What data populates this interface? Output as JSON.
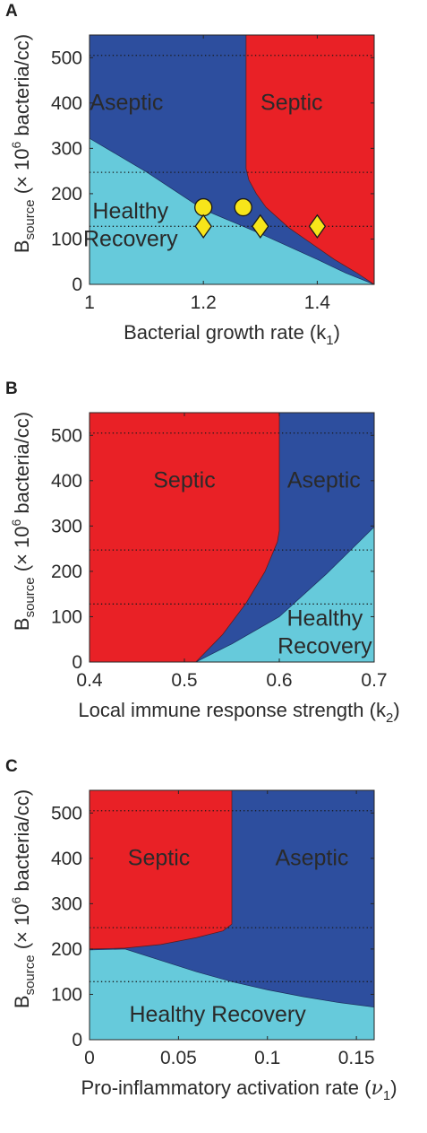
{
  "chart_data": [
    {
      "panel": "A",
      "type": "area",
      "xlabel": "Bacterial growth rate (k",
      "xlabel_sub": "1",
      "xlabel_tail": ")",
      "ylabel_main": "B",
      "ylabel_sub": "source",
      "ylabel_rest": " (× 10",
      "ylabel_sup": "6",
      "ylabel_tail": " bacteria/cc)",
      "xlim": [
        1,
        1.5
      ],
      "ylim": [
        0,
        550
      ],
      "xticks": [
        1,
        1.2,
        1.4
      ],
      "xtick_labels": [
        "1",
        "1.2",
        "1.4"
      ],
      "yticks": [
        0,
        100,
        200,
        300,
        400,
        500
      ],
      "ytick_labels": [
        "0",
        "100",
        "200",
        "300",
        "400",
        "500"
      ],
      "dotted_lines_y": [
        505,
        247,
        128
      ],
      "colors": {
        "healthy": "#66cadb",
        "aseptic": "#2d4e9e",
        "septic": "#e92126"
      },
      "regions": [
        {
          "name": "Aseptic",
          "label_lines": [
            "Aseptic"
          ],
          "color": "#2d4e9e",
          "label_at": [
            1.065,
            385
          ]
        },
        {
          "name": "Septic",
          "label_lines": [
            "Septic"
          ],
          "color": "#e92126",
          "label_at": [
            1.355,
            385
          ]
        },
        {
          "name": "Healthy Recovery",
          "label_lines": [
            "Healthy",
            "Recovery"
          ],
          "color": "#66cadb",
          "label_at": [
            1.072,
            145
          ]
        }
      ],
      "boundaries": {
        "healthy_aseptic": [
          [
            1.0,
            322
          ],
          [
            1.1,
            248
          ],
          [
            1.2,
            165
          ],
          [
            1.3,
            112
          ],
          [
            1.4,
            55
          ],
          [
            1.45,
            25
          ],
          [
            1.5,
            0
          ]
        ],
        "aseptic_septic": [
          [
            1.5,
            0
          ],
          [
            1.47,
            25
          ],
          [
            1.43,
            55
          ],
          [
            1.39,
            90
          ],
          [
            1.35,
            125
          ],
          [
            1.31,
            170
          ],
          [
            1.293,
            200
          ],
          [
            1.28,
            230
          ],
          [
            1.275,
            255
          ],
          [
            1.275,
            550
          ]
        ]
      },
      "markers": [
        {
          "shape": "circle",
          "x": 1.2,
          "y": 170
        },
        {
          "shape": "circle",
          "x": 1.27,
          "y": 170
        },
        {
          "shape": "diamond",
          "x": 1.2,
          "y": 128
        },
        {
          "shape": "diamond",
          "x": 1.3,
          "y": 128
        },
        {
          "shape": "diamond",
          "x": 1.4,
          "y": 128
        }
      ],
      "marker_color": "#f7e51a"
    },
    {
      "panel": "B",
      "type": "area",
      "xlabel": "Local immune response strength (k",
      "xlabel_sub": "2",
      "xlabel_tail": ")",
      "ylabel_main": "B",
      "ylabel_sub": "source",
      "ylabel_rest": " (× 10",
      "ylabel_sup": "6",
      "ylabel_tail": " bacteria/cc)",
      "xlim": [
        0.4,
        0.7
      ],
      "ylim": [
        0,
        550
      ],
      "xticks": [
        0.4,
        0.5,
        0.6,
        0.7
      ],
      "xtick_labels": [
        "0.4",
        "0.5",
        "0.6",
        "0.7"
      ],
      "yticks": [
        0,
        100,
        200,
        300,
        400,
        500
      ],
      "ytick_labels": [
        "0",
        "100",
        "200",
        "300",
        "400",
        "500"
      ],
      "dotted_lines_y": [
        505,
        247,
        128
      ],
      "colors": {
        "healthy": "#66cadb",
        "aseptic": "#2d4e9e",
        "septic": "#e92126"
      },
      "regions": [
        {
          "name": "Septic",
          "label_lines": [
            "Septic"
          ],
          "color": "#e92126",
          "label_at": [
            0.5,
            385
          ]
        },
        {
          "name": "Aseptic",
          "label_lines": [
            "Aseptic"
          ],
          "color": "#2d4e9e",
          "label_at": [
            0.647,
            385
          ]
        },
        {
          "name": "Healthy Recovery",
          "label_lines": [
            "Healthy",
            "Recovery"
          ],
          "color": "#66cadb",
          "label_at": [
            0.648,
            80
          ]
        }
      ],
      "boundaries": {
        "septic_aseptic": [
          [
            0.512,
            0
          ],
          [
            0.54,
            60
          ],
          [
            0.565,
            130
          ],
          [
            0.585,
            200
          ],
          [
            0.598,
            265
          ],
          [
            0.6,
            290
          ],
          [
            0.6,
            550
          ]
        ],
        "aseptic_healthy": [
          [
            0.512,
            0
          ],
          [
            0.55,
            40
          ],
          [
            0.6,
            100
          ],
          [
            0.65,
            195
          ],
          [
            0.7,
            298
          ]
        ]
      },
      "markers": []
    },
    {
      "panel": "C",
      "type": "area",
      "xlabel": "Pro-inflammatory activation rate (",
      "xlabel_sym": "ν",
      "xlabel_sub": "1",
      "xlabel_tail": ")",
      "ylabel_main": "B",
      "ylabel_sub": "source",
      "ylabel_rest": " (× 10",
      "ylabel_sup": "6",
      "ylabel_tail": " bacteria/cc)",
      "xlim": [
        0,
        0.16
      ],
      "ylim": [
        0,
        550
      ],
      "xticks": [
        0,
        0.05,
        0.1,
        0.15
      ],
      "xtick_labels": [
        "0",
        "0.05",
        "0.1",
        "0.15"
      ],
      "yticks": [
        0,
        100,
        200,
        300,
        400,
        500
      ],
      "ytick_labels": [
        "0",
        "100",
        "200",
        "300",
        "400",
        "500"
      ],
      "dotted_lines_y": [
        505,
        247,
        128
      ],
      "colors": {
        "healthy": "#66cadb",
        "aseptic": "#2d4e9e",
        "septic": "#e92126"
      },
      "regions": [
        {
          "name": "Septic",
          "label_lines": [
            "Septic"
          ],
          "color": "#e92126",
          "label_at": [
            0.039,
            385
          ]
        },
        {
          "name": "Aseptic",
          "label_lines": [
            "Aseptic"
          ],
          "color": "#2d4e9e",
          "label_at": [
            0.125,
            385
          ]
        },
        {
          "name": "Healthy Recovery",
          "label_lines": [
            "Healthy Recovery"
          ],
          "color": "#66cadb",
          "label_at": [
            0.072,
            40
          ]
        }
      ],
      "boundaries": {
        "septic_aseptic": [
          [
            0,
            200
          ],
          [
            0.02,
            202
          ],
          [
            0.04,
            210
          ],
          [
            0.06,
            225
          ],
          [
            0.075,
            240
          ],
          [
            0.08,
            255
          ],
          [
            0.08,
            550
          ]
        ],
        "healthy_aseptic": [
          [
            0,
            198
          ],
          [
            0.02,
            200
          ],
          [
            0.04,
            175
          ],
          [
            0.06,
            150
          ],
          [
            0.08,
            128
          ],
          [
            0.1,
            110
          ],
          [
            0.12,
            95
          ],
          [
            0.14,
            82
          ],
          [
            0.16,
            72
          ]
        ]
      },
      "markers": []
    }
  ]
}
